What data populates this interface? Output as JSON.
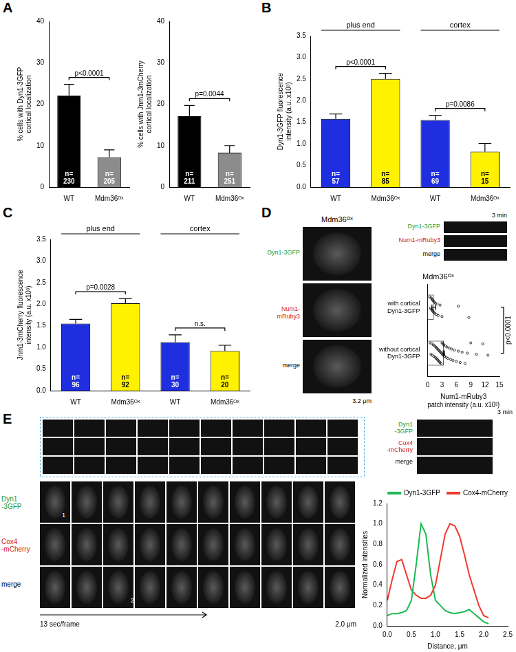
{
  "panel_letters": [
    "A",
    "B",
    "C",
    "D",
    "E"
  ],
  "chart_data": [
    {
      "type": "bar",
      "categories": [
        "WT",
        "Mdm36ᴼˣ"
      ],
      "values": [
        22.1,
        7.2
      ],
      "errors": [
        2.7,
        1.8
      ],
      "colors": [
        "#000000",
        "#8c8c8c"
      ],
      "y_label": [
        "% cells with Dyn1-3GFP",
        "cortical localization"
      ],
      "ylim": [
        0,
        40
      ],
      "yticks": [
        0,
        10,
        20,
        30,
        40
      ],
      "n_labels": [
        [
          "n=",
          "230"
        ],
        [
          "n=",
          "205"
        ]
      ],
      "comparisons": [
        {
          "between": [
            0,
            1
          ],
          "label": "p<0.0001"
        }
      ]
    },
    {
      "type": "bar",
      "categories": [
        "WT",
        "Mdm36ᴼˣ"
      ],
      "values": [
        17.1,
        8.3
      ],
      "errors": [
        2.6,
        1.7
      ],
      "colors": [
        "#000000",
        "#8c8c8c"
      ],
      "y_label": [
        "% cells with Jnm1-3mCherry",
        "cortical localization"
      ],
      "ylim": [
        0,
        40
      ],
      "yticks": [
        0,
        10,
        20,
        30,
        40
      ],
      "n_labels": [
        [
          "n=",
          "211"
        ],
        [
          "n=",
          "251"
        ]
      ],
      "comparisons": [
        {
          "between": [
            0,
            1
          ],
          "label": "p=0.0044"
        }
      ]
    },
    {
      "type": "bar",
      "categories": [
        "WT",
        "Mdm36ᴼˣ",
        "WT",
        "Mdm36ᴼˣ"
      ],
      "values": [
        1.58,
        2.5,
        1.55,
        0.82
      ],
      "errors": [
        0.11,
        0.13,
        0.11,
        0.19
      ],
      "colors": [
        "#1f2fe0",
        "#fff200",
        "#1f2fe0",
        "#fff200"
      ],
      "y_label": [
        "Dyn1-3GFP fluorescence",
        "intensity (a.u. x10³)"
      ],
      "ylim": [
        0,
        3.5
      ],
      "yticks": [
        {
          "value": 0,
          "label": "0.0"
        },
        0.5,
        {
          "value": 1,
          "label": "1.0"
        },
        1.5,
        {
          "value": 2,
          "label": "2.0"
        },
        2.5,
        {
          "value": 3,
          "label": "3.0"
        },
        3.5
      ],
      "groups": [
        {
          "label": "plus end",
          "between": [
            0,
            1
          ]
        },
        {
          "label": "cortex",
          "between": [
            2,
            3
          ]
        }
      ],
      "n_labels": [
        [
          "n=",
          "57"
        ],
        [
          "n=",
          "85"
        ],
        [
          "n=",
          "69"
        ],
        [
          "n=",
          "15"
        ]
      ],
      "comparisons": [
        {
          "between": [
            0,
            1
          ],
          "label": "p<0.0001"
        },
        {
          "between": [
            2,
            3
          ],
          "label": "p=0.0086"
        }
      ]
    },
    {
      "type": "bar",
      "categories": [
        "WT",
        "Mdm36ᴼˣ",
        "WT",
        "Mdm36ᴼˣ"
      ],
      "values": [
        1.55,
        2.02,
        1.12,
        0.92
      ],
      "errors": [
        0.1,
        0.11,
        0.17,
        0.13
      ],
      "colors": [
        "#1f2fe0",
        "#fff200",
        "#1f2fe0",
        "#fff200"
      ],
      "y_label": [
        "Jnm1-3mCherry fluorescence",
        "intensity (a.u. x10³)"
      ],
      "ylim": [
        0,
        3.5
      ],
      "yticks": [
        {
          "value": 0,
          "label": "0.0"
        },
        0.5,
        {
          "value": 1,
          "label": "1.0"
        },
        1.5,
        {
          "value": 2,
          "label": "2.0"
        },
        2.5,
        {
          "value": 3,
          "label": "3.0"
        },
        3.5
      ],
      "groups": [
        {
          "label": "plus end",
          "between": [
            0,
            1
          ]
        },
        {
          "label": "cortex",
          "between": [
            2,
            3
          ]
        }
      ],
      "n_labels": [
        [
          "n=",
          "96"
        ],
        [
          "n=",
          "92"
        ],
        [
          "n=",
          "30"
        ],
        [
          "n=",
          "20"
        ]
      ],
      "comparisons": [
        {
          "between": [
            0,
            1
          ],
          "label": "p=0.0028"
        },
        {
          "between": [
            2,
            3
          ],
          "label": "n.s."
        }
      ]
    },
    {
      "type": "bar",
      "orientation": "horizontal",
      "title": "Mdm36ᴼˣ",
      "categories": [
        [
          "with cortical",
          "Dyn1-3GFP"
        ],
        [
          "without cortical",
          "Dyn1-3GFP"
        ]
      ],
      "values": [
        1.3,
        3.4
      ],
      "errors": [
        0.4,
        0.15
      ],
      "colors": [
        "#ffffff",
        "#ffffff"
      ],
      "points": [
        [
          0.4,
          0.6,
          0.7,
          0.8,
          0.9,
          1.0,
          1.0,
          1.1,
          1.2,
          1.3,
          1.4,
          1.5,
          1.6,
          1.8,
          2.0,
          2.2,
          2.6,
          3.0,
          6.4,
          8.6
        ],
        [
          0.5,
          0.7,
          0.9,
          1.0,
          1.2,
          1.3,
          1.5,
          1.6,
          1.7,
          1.8,
          1.9,
          2.0,
          2.1,
          2.2,
          2.3,
          2.4,
          2.5,
          2.6,
          2.7,
          2.8,
          2.9,
          3.0,
          3.1,
          3.2,
          3.3,
          3.4,
          3.5,
          3.7,
          3.9,
          4.0,
          4.2,
          4.5,
          4.8,
          5.0,
          5.3,
          5.6,
          6.0,
          6.4,
          6.8,
          7.2,
          7.8,
          8.3,
          9.0,
          10.2,
          11.5,
          12.6
        ]
      ],
      "x_label": [
        "Num1-mRuby3",
        "patch intensity (a.u. x10³)"
      ],
      "xlim": [
        0,
        15
      ],
      "xticks": [
        0,
        3,
        6,
        9,
        12,
        15
      ],
      "comparisons": [
        {
          "between": [
            0,
            1
          ],
          "label": "p<0.0001"
        }
      ]
    },
    {
      "type": "line",
      "x": [
        0,
        0.1,
        0.2,
        0.3,
        0.4,
        0.5,
        0.6,
        0.7,
        0.8,
        0.9,
        1.0,
        1.1,
        1.2,
        1.3,
        1.4,
        1.5,
        1.6,
        1.7,
        1.8,
        1.9,
        2.0,
        2.1
      ],
      "series": [
        {
          "name": "Dyn1-3GFP",
          "color": "#1db954",
          "values": [
            0.1,
            0.12,
            0.12,
            0.13,
            0.15,
            0.25,
            0.6,
            1.0,
            0.9,
            0.5,
            0.25,
            0.2,
            0.15,
            0.13,
            0.12,
            0.13,
            0.14,
            0.16,
            0.12,
            0.08,
            0.04,
            0.02
          ]
        },
        {
          "name": "Cox4-mCherry",
          "color": "#ee3b2f",
          "values": [
            0.25,
            0.45,
            0.63,
            0.65,
            0.5,
            0.35,
            0.3,
            0.27,
            0.27,
            0.3,
            0.4,
            0.65,
            0.9,
            1.0,
            0.98,
            0.88,
            0.7,
            0.5,
            0.35,
            0.2,
            0.1,
            0.08
          ]
        }
      ],
      "x_label": "Distance, μm",
      "y_label": "Normalized intensities",
      "xlim": [
        0,
        2.5
      ],
      "xticks": [
        {
          "value": 0,
          "label": "0.0"
        },
        0.5,
        {
          "value": 1,
          "label": "1.0"
        },
        1.5,
        {
          "value": 2,
          "label": "2.0"
        },
        2.5
      ],
      "ylim": [
        0,
        1.2
      ],
      "yticks": [
        {
          "value": 0,
          "label": "0.0"
        },
        0.2,
        0.4,
        0.6,
        0.8,
        {
          "value": 1,
          "label": "1.0"
        },
        1.2
      ],
      "legend": "upper right"
    }
  ],
  "images": {
    "D": {
      "title": "Mdm36ᴼˣ",
      "channels": [
        "Dyn1-3GFP",
        "Num1-mRuby3",
        "merge"
      ],
      "scale_bar": "3.2 μm",
      "kymograph": {
        "channels": [
          "Dyn1-3GFP",
          "Num1-mRuby3",
          "merge"
        ],
        "time": "3 min"
      }
    },
    "E": {
      "channels": [
        [
          "Dyn1",
          "-3GFP"
        ],
        [
          "Cox4",
          "-mCherry"
        ],
        [
          "merge"
        ]
      ],
      "interval": "13 sec/frame",
      "scale_bar": "2.0 μm",
      "cell_labels": [
        "1",
        "2"
      ],
      "kymograph": {
        "channels": [
          [
            "Dyn1",
            "-3GFP"
          ],
          [
            "Cox4",
            "-mCherry"
          ],
          [
            "merge"
          ]
        ],
        "time": "3 min"
      }
    }
  }
}
